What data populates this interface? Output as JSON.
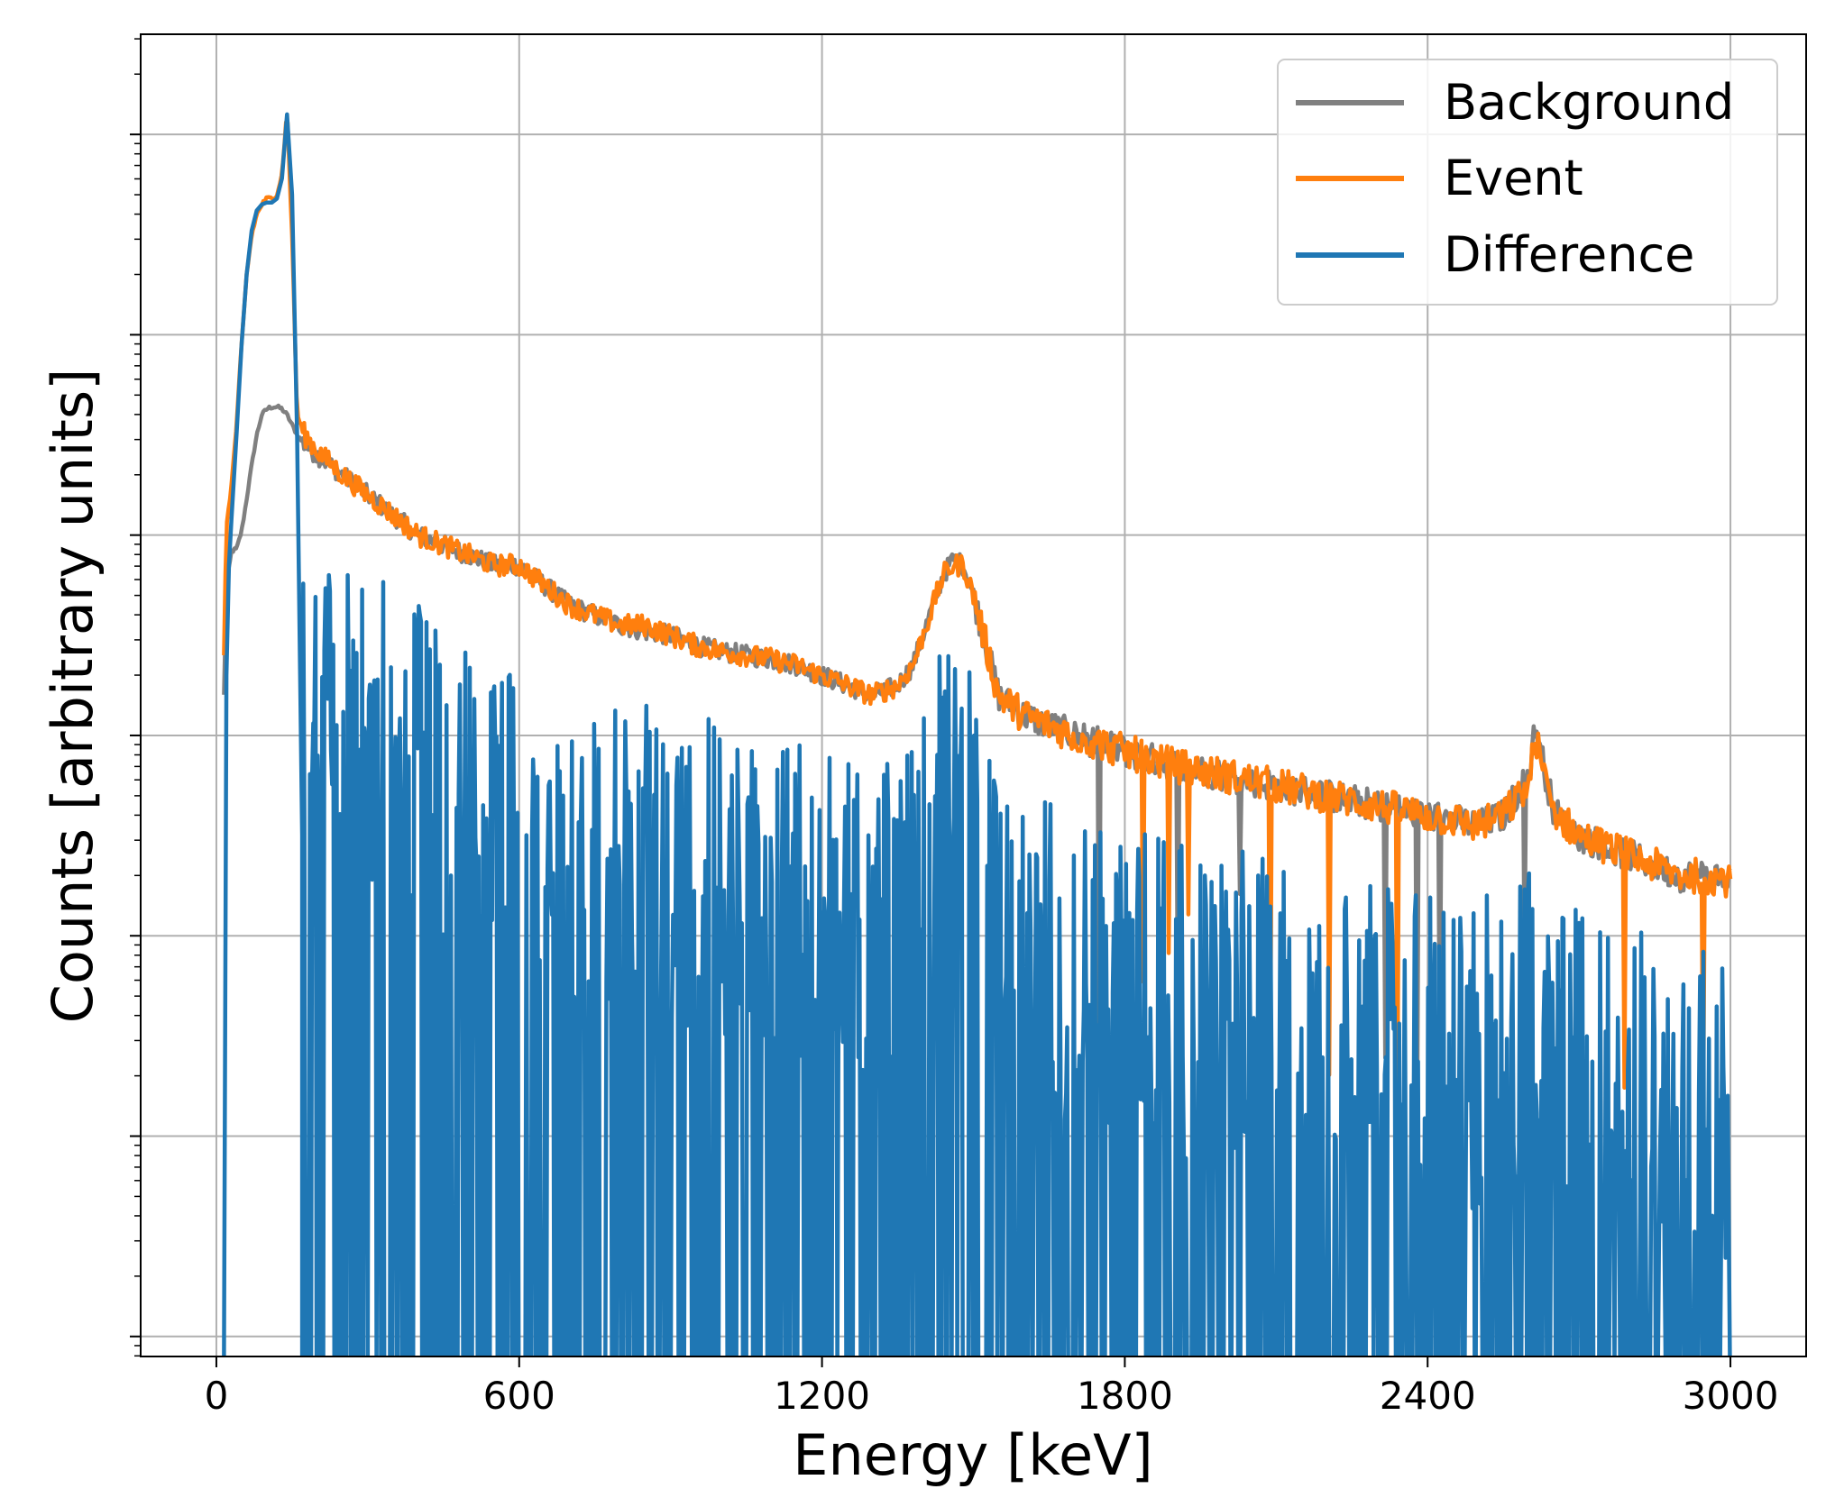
{
  "chart_data": {
    "type": "line",
    "title": "",
    "xlabel": "Energy [keV]",
    "ylabel": "Counts [arbitrary units]",
    "xlim": [
      -150,
      3150
    ],
    "x_ticks": [
      0,
      600,
      1200,
      1800,
      2400,
      3000
    ],
    "x_tick_labels": [
      "0",
      "600",
      "1200",
      "1800",
      "2400",
      "3000"
    ],
    "y_scale": "log",
    "y_tick_labels_shown": false,
    "ylim_log10": [
      -1.1,
      5.5
    ],
    "grid": true,
    "legend_position": "top-right",
    "series": [
      {
        "name": "Background",
        "color": "#808080",
        "x": [
          15,
          20,
          30,
          40,
          50,
          60,
          70,
          80,
          90,
          100,
          110,
          120,
          130,
          140,
          150,
          160,
          175,
          200,
          250,
          300,
          350,
          400,
          450,
          500,
          550,
          600,
          650,
          700,
          750,
          800,
          850,
          900,
          950,
          1000,
          1050,
          1100,
          1150,
          1200,
          1250,
          1300,
          1350,
          1380,
          1400,
          1420,
          1440,
          1460,
          1480,
          1500,
          1520,
          1550,
          1600,
          1650,
          1700,
          1800,
          1900,
          2000,
          2100,
          2200,
          2300,
          2400,
          2450,
          2500,
          2550,
          2600,
          2614,
          2630,
          2650,
          2700,
          2750,
          2800,
          2850,
          2900,
          2950,
          3000
        ],
        "y_log10": [
          2.2,
          2.75,
          2.92,
          2.93,
          3.02,
          3.18,
          3.35,
          3.5,
          3.6,
          3.63,
          3.64,
          3.64,
          3.63,
          3.6,
          3.55,
          3.5,
          3.45,
          3.4,
          3.3,
          3.2,
          3.1,
          3.0,
          2.95,
          2.9,
          2.85,
          2.85,
          2.75,
          2.65,
          2.6,
          2.55,
          2.52,
          2.5,
          2.45,
          2.42,
          2.4,
          2.38,
          2.35,
          2.3,
          2.25,
          2.2,
          2.25,
          2.35,
          2.5,
          2.65,
          2.8,
          2.88,
          2.85,
          2.7,
          2.5,
          2.2,
          2.1,
          2.05,
          2.0,
          1.92,
          1.85,
          1.8,
          1.75,
          1.7,
          1.65,
          1.6,
          1.58,
          1.55,
          1.6,
          1.8,
          2.05,
          1.85,
          1.62,
          1.5,
          1.45,
          1.4,
          1.35,
          1.3,
          1.3,
          1.28
        ]
      },
      {
        "name": "Event",
        "color": "#ff7f0e",
        "x": [
          15,
          20,
          30,
          40,
          50,
          60,
          70,
          80,
          90,
          100,
          110,
          120,
          130,
          140,
          150,
          160,
          175,
          200,
          250,
          300,
          350,
          400,
          450,
          500,
          550,
          600,
          650,
          700,
          750,
          800,
          850,
          900,
          950,
          1000,
          1050,
          1100,
          1150,
          1200,
          1250,
          1300,
          1350,
          1380,
          1400,
          1420,
          1440,
          1460,
          1480,
          1500,
          1520,
          1550,
          1600,
          1650,
          1700,
          1800,
          1900,
          2000,
          2100,
          2200,
          2300,
          2400,
          2450,
          2500,
          2550,
          2600,
          2614,
          2630,
          2650,
          2700,
          2750,
          2800,
          2850,
          2900,
          2950,
          3000
        ],
        "y_log10": [
          2.4,
          3.05,
          3.25,
          3.55,
          3.95,
          4.3,
          4.5,
          4.6,
          4.65,
          4.68,
          4.68,
          4.7,
          4.8,
          5.12,
          4.5,
          3.6,
          3.5,
          3.42,
          3.3,
          3.2,
          3.1,
          3.0,
          2.95,
          2.9,
          2.85,
          2.85,
          2.75,
          2.65,
          2.6,
          2.55,
          2.55,
          2.5,
          2.45,
          2.42,
          2.4,
          2.38,
          2.35,
          2.3,
          2.25,
          2.2,
          2.25,
          2.35,
          2.5,
          2.65,
          2.8,
          2.85,
          2.85,
          2.7,
          2.5,
          2.2,
          2.1,
          2.05,
          2.0,
          1.92,
          1.85,
          1.8,
          1.75,
          1.7,
          1.65,
          1.6,
          1.58,
          1.55,
          1.6,
          1.75,
          2.0,
          1.8,
          1.62,
          1.5,
          1.45,
          1.4,
          1.35,
          1.3,
          1.3,
          1.28
        ]
      },
      {
        "name": "Difference",
        "color": "#1f77b4",
        "x": [
          15,
          20,
          25,
          30,
          40,
          50,
          60,
          70,
          80,
          90,
          100,
          110,
          120,
          130,
          140,
          150,
          160,
          170
        ],
        "y_log10": [
          -1.1,
          2.3,
          2.85,
          3.08,
          3.5,
          3.95,
          4.3,
          4.52,
          4.62,
          4.65,
          4.66,
          4.66,
          4.68,
          4.78,
          5.1,
          4.7,
          3.5,
          1.5
        ],
        "noise_region": {
          "x_range": [
            170,
            3000
          ],
          "y_log10_range": [
            -1.1,
            2.8
          ]
        }
      }
    ]
  }
}
